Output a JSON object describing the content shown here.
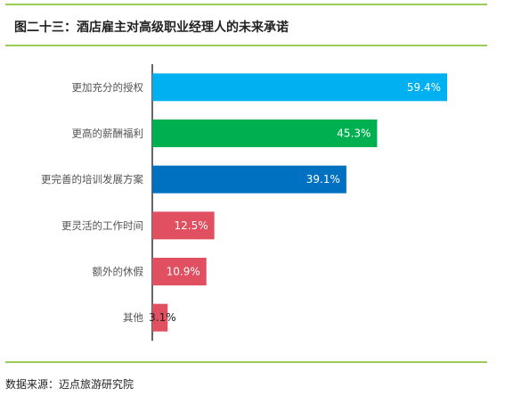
{
  "header": {
    "title": "图二十三：酒店雇主对高级职业经理人的未来承诺"
  },
  "footer": {
    "source": "数据来源：迈点旅游研究院"
  },
  "chart_data": {
    "type": "bar",
    "orientation": "horizontal",
    "title": "",
    "xlabel": "",
    "ylabel": "",
    "categories": [
      "更加充分的授权",
      "更高的薪酬福利",
      "更完善的培训发展方案",
      "更灵活的工作时间",
      "额外的休假",
      "其他"
    ],
    "values": [
      59.4,
      45.3,
      39.1,
      12.5,
      10.9,
      3.1
    ],
    "labels": [
      "59.4%",
      "45.3%",
      "39.1%",
      "12.5%",
      "10.9%",
      "3.1%"
    ],
    "colors": [
      "#00b0f0",
      "#00b050",
      "#0070c0",
      "#e05060",
      "#e05060",
      "#e05060"
    ],
    "xlim": [
      0,
      100
    ],
    "grid": false,
    "legend": "none"
  }
}
